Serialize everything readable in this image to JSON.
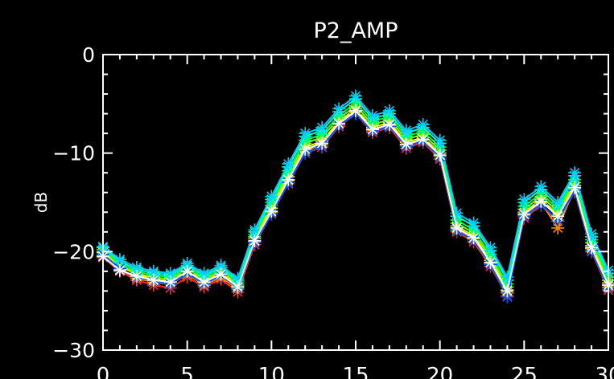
{
  "chart_data": {
    "type": "line",
    "title": "P2_AMP",
    "xlabel": "",
    "ylabel": "dB",
    "xlim": [
      0,
      30
    ],
    "ylim": [
      -30,
      0
    ],
    "x_ticks": [
      0,
      5,
      10,
      15,
      20,
      25,
      30
    ],
    "y_ticks": [
      0,
      -10,
      -20,
      -30
    ],
    "grid": false,
    "background": "#000000",
    "axis_color": "#ffffff",
    "marker": "asterisk",
    "x": [
      0,
      1,
      2,
      3,
      4,
      5,
      6,
      7,
      8,
      9,
      10,
      11,
      12,
      13,
      14,
      15,
      16,
      17,
      18,
      19,
      20,
      21,
      22,
      23,
      24,
      25,
      26,
      27,
      28,
      29,
      30
    ],
    "series": [
      {
        "color": "#ff2a2a",
        "values": [
          -20.6,
          -22.0,
          -22.9,
          -23.4,
          -23.7,
          -22.6,
          -23.6,
          -22.8,
          -24.1,
          -19.3,
          -16.2,
          -13.1,
          -10.0,
          -9.4,
          -7.3,
          -6.0,
          -7.9,
          -7.4,
          -9.5,
          -8.9,
          -10.6,
          -18.0,
          -19.0,
          -21.5,
          -24.5,
          -16.6,
          -15.3,
          -16.9,
          -13.9,
          -20.0,
          -23.9
        ]
      },
      {
        "color": "#ff8800",
        "values": [
          -20.4,
          -21.8,
          -22.7,
          -23.1,
          -23.3,
          -22.3,
          -23.4,
          -22.6,
          -23.8,
          -19.0,
          -16.0,
          -12.8,
          -9.8,
          -9.1,
          -7.1,
          -5.8,
          -7.7,
          -7.2,
          -9.2,
          -8.7,
          -10.3,
          -17.8,
          -18.7,
          -21.2,
          -24.2,
          -16.3,
          -15.0,
          -17.6,
          -13.6,
          -19.7,
          -23.6
        ]
      },
      {
        "color": "#ffff00",
        "values": [
          -20.1,
          -21.5,
          -22.3,
          -22.8,
          -23.0,
          -22.0,
          -23.0,
          -22.2,
          -23.5,
          -18.7,
          -15.6,
          -12.4,
          -9.4,
          -8.8,
          -6.8,
          -5.5,
          -7.4,
          -6.9,
          -8.9,
          -8.4,
          -10.0,
          -17.4,
          -18.4,
          -20.9,
          -23.9,
          -16.0,
          -14.7,
          -16.2,
          -13.3,
          -19.4,
          -23.2
        ]
      },
      {
        "color": "#88ff00",
        "values": [
          -20.0,
          -21.4,
          -22.2,
          -22.6,
          -22.8,
          -21.8,
          -22.8,
          -22.0,
          -23.3,
          -18.5,
          -15.3,
          -12.1,
          -9.0,
          -8.4,
          -6.5,
          -5.2,
          -7.1,
          -6.6,
          -8.6,
          -8.1,
          -9.7,
          -17.1,
          -18.1,
          -20.6,
          -23.6,
          -15.7,
          -14.4,
          -15.9,
          -13.0,
          -19.1,
          -22.9
        ]
      },
      {
        "color": "#00ff44",
        "values": [
          -19.8,
          -21.2,
          -22.0,
          -22.4,
          -22.6,
          -21.6,
          -22.6,
          -21.8,
          -23.1,
          -18.3,
          -15.0,
          -11.8,
          -8.7,
          -8.1,
          -6.2,
          -4.9,
          -6.8,
          -6.3,
          -8.3,
          -7.8,
          -9.4,
          -16.8,
          -17.8,
          -20.3,
          -23.3,
          -15.4,
          -14.1,
          -15.6,
          -12.7,
          -18.8,
          -22.6
        ]
      },
      {
        "color": "#00ffcc",
        "values": [
          -19.6,
          -21.0,
          -21.8,
          -22.2,
          -22.4,
          -21.4,
          -22.4,
          -21.6,
          -22.9,
          -18.0,
          -14.7,
          -11.4,
          -8.3,
          -7.7,
          -5.8,
          -4.5,
          -6.5,
          -6.0,
          -8.0,
          -7.4,
          -9.0,
          -16.4,
          -17.4,
          -19.9,
          -22.9,
          -15.0,
          -13.7,
          -15.3,
          -12.3,
          -18.5,
          -22.2
        ]
      },
      {
        "color": "#00ccff",
        "values": [
          -19.5,
          -20.8,
          -21.6,
          -22.0,
          -22.2,
          -21.2,
          -22.2,
          -21.4,
          -22.7,
          -17.8,
          -14.4,
          -11.1,
          -8.0,
          -7.4,
          -5.5,
          -4.2,
          -6.2,
          -5.7,
          -7.7,
          -7.1,
          -8.7,
          -16.1,
          -17.1,
          -19.6,
          -22.6,
          -14.7,
          -13.4,
          -15.0,
          -12.0,
          -18.2,
          -21.9
        ]
      },
      {
        "color": "#0055ff",
        "values": [
          -20.3,
          -21.7,
          -22.6,
          -23.0,
          -23.3,
          -22.2,
          -23.3,
          -22.4,
          -23.7,
          -19.1,
          -16.2,
          -13.0,
          -10.0,
          -9.3,
          -7.2,
          -6.0,
          -7.8,
          -7.3,
          -9.3,
          -8.8,
          -10.4,
          -17.9,
          -18.8,
          -21.3,
          -24.6,
          -16.4,
          -15.2,
          -16.8,
          -13.8,
          -19.9,
          -23.7
        ]
      },
      {
        "color": "#ffffff",
        "values": [
          -20.5,
          -21.9,
          -22.5,
          -22.9,
          -23.1,
          -22.0,
          -23.1,
          -22.3,
          -23.6,
          -18.9,
          -15.9,
          -12.7,
          -9.6,
          -9.0,
          -7.0,
          -5.7,
          -7.6,
          -7.1,
          -9.1,
          -8.6,
          -10.2,
          -17.6,
          -18.6,
          -21.1,
          -24.0,
          -16.2,
          -14.9,
          -16.4,
          -13.5,
          -19.6,
          -23.4
        ]
      }
    ]
  }
}
